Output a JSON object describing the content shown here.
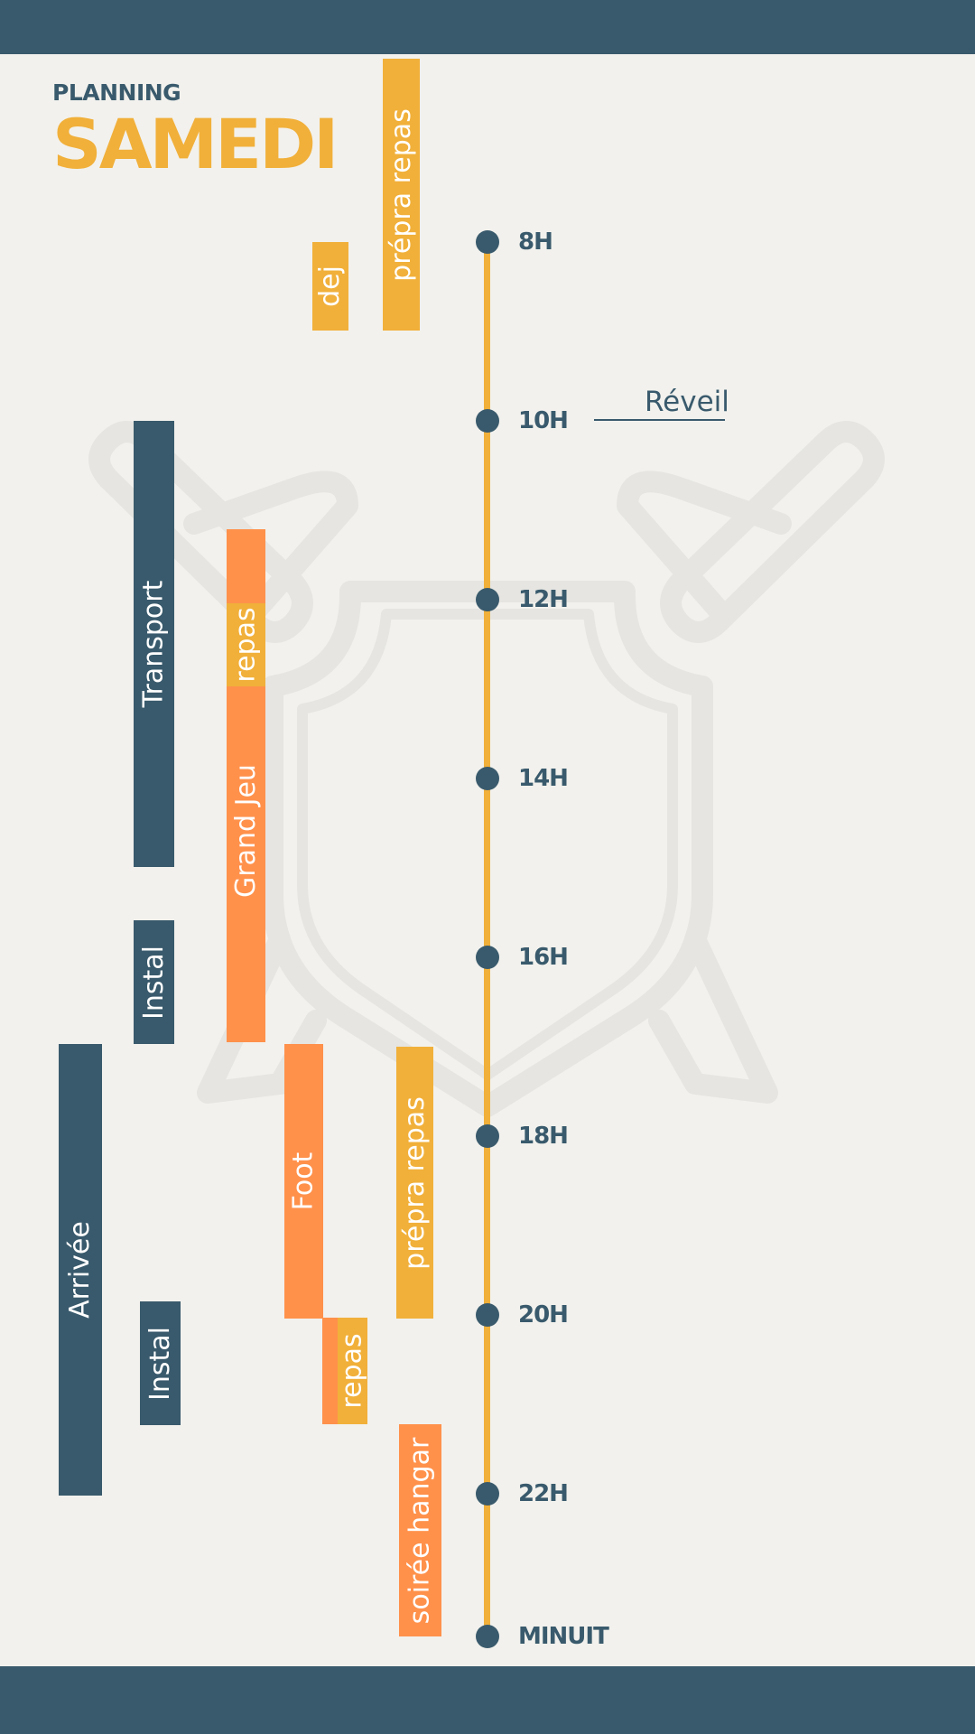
{
  "header": {
    "kicker": "PLANNING",
    "day": "SAMEDI"
  },
  "colors": {
    "background": "#f2f1ed",
    "slate": "#395a6c",
    "yellow": "#f1b03a",
    "orange": "#ff914b",
    "emblem": "#e6e5e1"
  },
  "timeline": {
    "ticks": [
      "8H",
      "10H",
      "12H",
      "14H",
      "16H",
      "18H",
      "20H",
      "22H",
      "MINUIT"
    ]
  },
  "annotation": {
    "label": "Réveil"
  },
  "events": {
    "prepa_matin": "prépra repas",
    "dej": "dej",
    "transport": "Transport",
    "grand_jeu": "Grand Jeu",
    "repas_midi": "repas",
    "instal_1": "Instal",
    "arrivee": "Arrivée",
    "foot": "Foot",
    "prepa_soir": "prépra repas",
    "instal_2": "Instal",
    "repas_soir": "repas",
    "soiree": "soirée hangar"
  }
}
